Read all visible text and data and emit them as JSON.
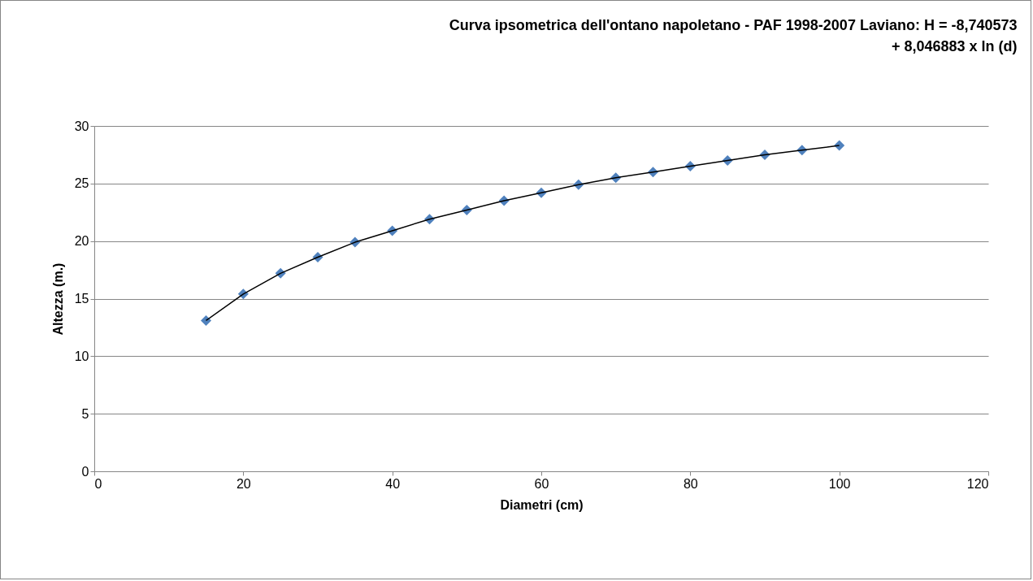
{
  "chart_data": {
    "type": "scatter",
    "title": "Curva ipsometrica dell'ontano napoletano - PAF 1998-2007 Laviano: H = -8,740573 + 8,046883 x ln (d)",
    "xlabel": "Diametri (cm)",
    "ylabel": "Altezza (m.)",
    "x": [
      15,
      20,
      25,
      30,
      35,
      40,
      45,
      50,
      55,
      60,
      65,
      70,
      75,
      80,
      85,
      90,
      95,
      100
    ],
    "series": [
      {
        "type": "scatter",
        "color": "#4f81bd",
        "marker": "diamond",
        "values": [
          13.1,
          15.4,
          17.2,
          18.6,
          19.9,
          20.9,
          21.9,
          22.7,
          23.5,
          24.2,
          24.9,
          25.5,
          26.0,
          26.5,
          27.0,
          27.5,
          27.9,
          28.3
        ]
      },
      {
        "type": "line",
        "color": "#000000",
        "marker": "none",
        "line_style": "solid",
        "x": [
          15,
          20,
          25,
          30,
          35,
          40,
          45,
          50,
          55,
          60,
          65,
          70,
          75,
          80,
          85,
          90,
          95,
          100
        ],
        "values": [
          13.1,
          15.4,
          17.2,
          18.6,
          19.9,
          20.9,
          21.9,
          22.7,
          23.5,
          24.2,
          24.9,
          25.5,
          26.0,
          26.5,
          27.0,
          27.5,
          27.9,
          28.3
        ]
      }
    ],
    "xlim": [
      0,
      120
    ],
    "xticks": [
      0,
      20,
      40,
      60,
      80,
      100,
      120
    ],
    "ylim": [
      0,
      30
    ],
    "yticks": [
      0,
      5,
      10,
      15,
      20,
      25,
      30
    ],
    "grid": "y",
    "legend": false
  }
}
